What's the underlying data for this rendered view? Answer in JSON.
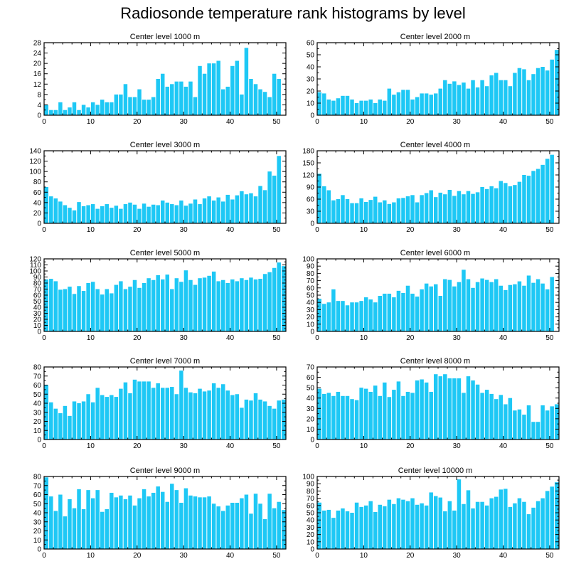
{
  "title": "Radiosonde temperature rank histograms by level",
  "colors": {
    "bar": "#1ec8f5",
    "axis": "#000000",
    "background": "#ffffff"
  },
  "chart_data": [
    {
      "type": "bar",
      "title": "Center level 1000 m",
      "x": [
        0,
        1,
        2,
        3,
        4,
        5,
        6,
        7,
        8,
        9,
        10,
        11,
        12,
        13,
        14,
        15,
        16,
        17,
        18,
        19,
        20,
        21,
        22,
        23,
        24,
        25,
        26,
        27,
        28,
        29,
        30,
        31,
        32,
        33,
        34,
        35,
        36,
        37,
        38,
        39,
        40,
        41,
        42,
        43,
        44,
        45,
        46,
        47,
        48,
        49,
        50,
        51
      ],
      "values": [
        4,
        2,
        2,
        5,
        2,
        3,
        5,
        2,
        4,
        3,
        5,
        4,
        6,
        5,
        5,
        8,
        8,
        12,
        7,
        7,
        10,
        6,
        6,
        7,
        14,
        16,
        11,
        12,
        13,
        13,
        11,
        13,
        7,
        19,
        16,
        20,
        20,
        21,
        10,
        11,
        19,
        21,
        8,
        26,
        14,
        12,
        10,
        9,
        7,
        16,
        14,
        0
      ],
      "xlim": [
        0,
        52
      ],
      "ylim": [
        0,
        28
      ],
      "xticks": [
        0,
        10,
        20,
        30,
        40,
        50
      ],
      "yticks": [
        0,
        4,
        8,
        12,
        16,
        20,
        24,
        28
      ]
    },
    {
      "type": "bar",
      "title": "Center level 2000 m",
      "x": [
        0,
        1,
        2,
        3,
        4,
        5,
        6,
        7,
        8,
        9,
        10,
        11,
        12,
        13,
        14,
        15,
        16,
        17,
        18,
        19,
        20,
        21,
        22,
        23,
        24,
        25,
        26,
        27,
        28,
        29,
        30,
        31,
        32,
        33,
        34,
        35,
        36,
        37,
        38,
        39,
        40,
        41,
        42,
        43,
        44,
        45,
        46,
        47,
        48,
        49,
        50,
        51
      ],
      "values": [
        19,
        18,
        13,
        12,
        14,
        16,
        16,
        13,
        10,
        12,
        12,
        13,
        10,
        13,
        12,
        22,
        17,
        19,
        21,
        21,
        13,
        15,
        18,
        18,
        17,
        18,
        22,
        29,
        26,
        28,
        25,
        27,
        22,
        29,
        23,
        29,
        24,
        33,
        35,
        29,
        29,
        24,
        35,
        39,
        38,
        29,
        34,
        39,
        40,
        37,
        46,
        54
      ],
      "xlim": [
        0,
        52
      ],
      "ylim": [
        0,
        60
      ],
      "xticks": [
        0,
        10,
        20,
        30,
        40,
        50
      ],
      "yticks": [
        0,
        10,
        20,
        30,
        40,
        50,
        60
      ]
    },
    {
      "type": "bar",
      "title": "Center level 3000 m",
      "x": [
        0,
        1,
        2,
        3,
        4,
        5,
        6,
        7,
        8,
        9,
        10,
        11,
        12,
        13,
        14,
        15,
        16,
        17,
        18,
        19,
        20,
        21,
        22,
        23,
        24,
        25,
        26,
        27,
        28,
        29,
        30,
        31,
        32,
        33,
        34,
        35,
        36,
        37,
        38,
        39,
        40,
        41,
        42,
        43,
        44,
        45,
        46,
        47,
        48,
        49,
        50,
        51
      ],
      "values": [
        70,
        52,
        48,
        42,
        35,
        30,
        25,
        41,
        33,
        35,
        37,
        28,
        33,
        37,
        30,
        34,
        28,
        37,
        40,
        36,
        28,
        38,
        32,
        36,
        35,
        44,
        40,
        37,
        35,
        44,
        34,
        38,
        46,
        37,
        48,
        52,
        44,
        50,
        42,
        55,
        46,
        54,
        62,
        56,
        58,
        52,
        72,
        64,
        100,
        92,
        130,
        0
      ],
      "xlim": [
        0,
        52
      ],
      "ylim": [
        0,
        140
      ],
      "xticks": [
        0,
        10,
        20,
        30,
        40,
        50
      ],
      "yticks": [
        0,
        20,
        40,
        60,
        80,
        100,
        120,
        140
      ]
    },
    {
      "type": "bar",
      "title": "Center level 4000 m",
      "x": [
        0,
        1,
        2,
        3,
        4,
        5,
        6,
        7,
        8,
        9,
        10,
        11,
        12,
        13,
        14,
        15,
        16,
        17,
        18,
        19,
        20,
        21,
        22,
        23,
        24,
        25,
        26,
        27,
        28,
        29,
        30,
        31,
        32,
        33,
        34,
        35,
        36,
        37,
        38,
        39,
        40,
        41,
        42,
        43,
        44,
        45,
        46,
        47,
        48,
        49,
        50,
        51
      ],
      "values": [
        123,
        92,
        82,
        57,
        60,
        70,
        60,
        50,
        50,
        62,
        53,
        58,
        66,
        52,
        57,
        48,
        52,
        62,
        63,
        67,
        70,
        52,
        70,
        75,
        82,
        65,
        76,
        72,
        83,
        68,
        80,
        72,
        80,
        73,
        77,
        90,
        85,
        92,
        87,
        105,
        100,
        92,
        95,
        103,
        120,
        118,
        130,
        135,
        145,
        160,
        170,
        0
      ],
      "xlim": [
        0,
        52
      ],
      "ylim": [
        0,
        180
      ],
      "xticks": [
        0,
        10,
        20,
        30,
        40,
        50
      ],
      "yticks": [
        0,
        30,
        60,
        90,
        120,
        150,
        180
      ]
    },
    {
      "type": "bar",
      "title": "Center level 5000 m",
      "x": [
        0,
        1,
        2,
        3,
        4,
        5,
        6,
        7,
        8,
        9,
        10,
        11,
        12,
        13,
        14,
        15,
        16,
        17,
        18,
        19,
        20,
        21,
        22,
        23,
        24,
        25,
        26,
        27,
        28,
        29,
        30,
        31,
        32,
        33,
        34,
        35,
        36,
        37,
        38,
        39,
        40,
        41,
        42,
        43,
        44,
        45,
        46,
        47,
        48,
        49,
        50,
        51
      ],
      "values": [
        86,
        87,
        83,
        69,
        70,
        74,
        62,
        75,
        67,
        80,
        82,
        70,
        61,
        70,
        63,
        77,
        83,
        70,
        74,
        85,
        72,
        80,
        88,
        85,
        93,
        86,
        94,
        70,
        88,
        82,
        101,
        85,
        77,
        88,
        89,
        92,
        99,
        83,
        85,
        80,
        86,
        83,
        88,
        85,
        89,
        86,
        87,
        95,
        98,
        105,
        114,
        108
      ],
      "xlim": [
        0,
        52
      ],
      "ylim": [
        0,
        120
      ],
      "xticks": [
        0,
        10,
        20,
        30,
        40,
        50
      ],
      "yticks": [
        0,
        10,
        20,
        30,
        40,
        50,
        60,
        70,
        80,
        90,
        100,
        110,
        120
      ]
    },
    {
      "type": "bar",
      "title": "Center level 6000 m",
      "x": [
        0,
        1,
        2,
        3,
        4,
        5,
        6,
        7,
        8,
        9,
        10,
        11,
        12,
        13,
        14,
        15,
        16,
        17,
        18,
        19,
        20,
        21,
        22,
        23,
        24,
        25,
        26,
        27,
        28,
        29,
        30,
        31,
        32,
        33,
        34,
        35,
        36,
        37,
        38,
        39,
        40,
        41,
        42,
        43,
        44,
        45,
        46,
        47,
        48,
        49,
        50,
        51
      ],
      "values": [
        45,
        38,
        40,
        58,
        42,
        42,
        36,
        40,
        40,
        42,
        47,
        44,
        40,
        49,
        52,
        52,
        47,
        56,
        53,
        63,
        52,
        48,
        58,
        66,
        62,
        65,
        49,
        72,
        71,
        62,
        68,
        85,
        72,
        60,
        68,
        73,
        71,
        68,
        72,
        63,
        57,
        64,
        65,
        69,
        63,
        77,
        67,
        72,
        66,
        58,
        75,
        0
      ],
      "xlim": [
        0,
        52
      ],
      "ylim": [
        0,
        100
      ],
      "xticks": [
        0,
        10,
        20,
        30,
        40,
        50
      ],
      "yticks": [
        0,
        10,
        20,
        30,
        40,
        50,
        60,
        70,
        80,
        90,
        100
      ]
    },
    {
      "type": "bar",
      "title": "Center level 7000 m",
      "x": [
        0,
        1,
        2,
        3,
        4,
        5,
        6,
        7,
        8,
        9,
        10,
        11,
        12,
        13,
        14,
        15,
        16,
        17,
        18,
        19,
        20,
        21,
        22,
        23,
        24,
        25,
        26,
        27,
        28,
        29,
        30,
        31,
        32,
        33,
        34,
        35,
        36,
        37,
        38,
        39,
        40,
        41,
        42,
        43,
        44,
        45,
        46,
        47,
        48,
        49,
        50,
        51
      ],
      "values": [
        60,
        41,
        34,
        29,
        37,
        26,
        42,
        40,
        42,
        50,
        41,
        57,
        49,
        47,
        49,
        47,
        56,
        63,
        51,
        66,
        64,
        64,
        64,
        57,
        62,
        57,
        57,
        58,
        50,
        76,
        57,
        52,
        51,
        56,
        53,
        54,
        62,
        57,
        61,
        54,
        49,
        50,
        35,
        44,
        43,
        51,
        44,
        42,
        37,
        34,
        43,
        44
      ],
      "xlim": [
        0,
        52
      ],
      "ylim": [
        0,
        80
      ],
      "xticks": [
        0,
        10,
        20,
        30,
        40,
        50
      ],
      "yticks": [
        0,
        10,
        20,
        30,
        40,
        50,
        60,
        70,
        80
      ]
    },
    {
      "type": "bar",
      "title": "Center level 8000 m",
      "x": [
        0,
        1,
        2,
        3,
        4,
        5,
        6,
        7,
        8,
        9,
        10,
        11,
        12,
        13,
        14,
        15,
        16,
        17,
        18,
        19,
        20,
        21,
        22,
        23,
        24,
        25,
        26,
        27,
        28,
        29,
        30,
        31,
        32,
        33,
        34,
        35,
        36,
        37,
        38,
        39,
        40,
        41,
        42,
        43,
        44,
        45,
        46,
        47,
        48,
        49,
        50,
        51
      ],
      "values": [
        49,
        44,
        45,
        42,
        46,
        42,
        42,
        39,
        38,
        50,
        49,
        46,
        52,
        42,
        55,
        41,
        48,
        56,
        42,
        46,
        45,
        57,
        58,
        55,
        46,
        63,
        61,
        63,
        59,
        59,
        59,
        45,
        61,
        57,
        53,
        45,
        48,
        44,
        39,
        43,
        34,
        40,
        28,
        29,
        24,
        33,
        17,
        17,
        33,
        28,
        32,
        34
      ],
      "xlim": [
        0,
        52
      ],
      "ylim": [
        0,
        70
      ],
      "xticks": [
        0,
        10,
        20,
        30,
        40,
        50
      ],
      "yticks": [
        0,
        10,
        20,
        30,
        40,
        50,
        60,
        70
      ]
    },
    {
      "type": "bar",
      "title": "Center level 9000 m",
      "x": [
        0,
        1,
        2,
        3,
        4,
        5,
        6,
        7,
        8,
        9,
        10,
        11,
        12,
        13,
        14,
        15,
        16,
        17,
        18,
        19,
        20,
        21,
        22,
        23,
        24,
        25,
        26,
        27,
        28,
        29,
        30,
        31,
        32,
        33,
        34,
        35,
        36,
        37,
        38,
        39,
        40,
        41,
        42,
        43,
        44,
        45,
        46,
        47,
        48,
        49,
        50,
        51
      ],
      "values": [
        79,
        58,
        42,
        60,
        36,
        55,
        45,
        66,
        44,
        65,
        56,
        65,
        41,
        44,
        62,
        57,
        59,
        55,
        59,
        48,
        56,
        66,
        58,
        62,
        69,
        63,
        52,
        72,
        65,
        51,
        67,
        59,
        58,
        57,
        57,
        58,
        50,
        47,
        42,
        48,
        51,
        51,
        56,
        60,
        39,
        61,
        50,
        33,
        61,
        45,
        52,
        43
      ],
      "xlim": [
        0,
        52
      ],
      "ylim": [
        0,
        80
      ],
      "xticks": [
        0,
        10,
        20,
        30,
        40,
        50
      ],
      "yticks": [
        0,
        10,
        20,
        30,
        40,
        50,
        60,
        70,
        80
      ]
    },
    {
      "type": "bar",
      "title": "Center level 10000 m",
      "x": [
        0,
        1,
        2,
        3,
        4,
        5,
        6,
        7,
        8,
        9,
        10,
        11,
        12,
        13,
        14,
        15,
        16,
        17,
        18,
        19,
        20,
        21,
        22,
        23,
        24,
        25,
        26,
        27,
        28,
        29,
        30,
        31,
        32,
        33,
        34,
        35,
        36,
        37,
        38,
        39,
        40,
        41,
        42,
        43,
        44,
        45,
        46,
        47,
        48,
        49,
        50,
        51
      ],
      "values": [
        64,
        53,
        54,
        43,
        53,
        56,
        52,
        50,
        64,
        58,
        60,
        66,
        51,
        61,
        59,
        68,
        62,
        70,
        68,
        66,
        70,
        61,
        63,
        60,
        78,
        73,
        71,
        52,
        66,
        53,
        96,
        62,
        81,
        56,
        65,
        65,
        60,
        70,
        72,
        82,
        83,
        58,
        63,
        70,
        65,
        48,
        57,
        66,
        70,
        80,
        86,
        92
      ],
      "xlim": [
        0,
        52
      ],
      "ylim": [
        0,
        100
      ],
      "xticks": [
        0,
        10,
        20,
        30,
        40,
        50
      ],
      "yticks": [
        0,
        10,
        20,
        30,
        40,
        50,
        60,
        70,
        80,
        90,
        100
      ]
    }
  ]
}
